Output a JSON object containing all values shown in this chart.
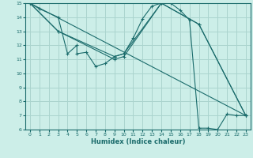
{
  "xlabel": "Humidex (Indice chaleur)",
  "background_color": "#cceee8",
  "grid_color": "#aad4ce",
  "line_color": "#1a6b6b",
  "xlim": [
    -0.5,
    23.5
  ],
  "ylim": [
    6,
    15
  ],
  "xticks": [
    0,
    1,
    2,
    3,
    4,
    5,
    6,
    7,
    8,
    9,
    10,
    11,
    12,
    13,
    14,
    15,
    16,
    17,
    18,
    19,
    20,
    21,
    22,
    23
  ],
  "yticks": [
    6,
    7,
    8,
    9,
    10,
    11,
    12,
    13,
    14,
    15
  ],
  "lines": [
    {
      "x": [
        0,
        1,
        3,
        4,
        5,
        5,
        6,
        7,
        8,
        9,
        10,
        11,
        12,
        13,
        14,
        15,
        16,
        17,
        18,
        19,
        20,
        21,
        22,
        23
      ],
      "y": [
        15,
        14.6,
        14.0,
        11.4,
        12.0,
        11.4,
        11.5,
        10.5,
        10.7,
        11.2,
        11.4,
        12.5,
        13.9,
        14.8,
        15.0,
        15.0,
        14.5,
        13.8,
        6.1,
        6.1,
        6.0,
        7.1,
        7.0,
        7.0
      ]
    },
    {
      "x": [
        0,
        3,
        9,
        10,
        14,
        18,
        23
      ],
      "y": [
        15,
        13.0,
        11.2,
        11.4,
        15.0,
        13.5,
        7.0
      ]
    },
    {
      "x": [
        0,
        3,
        9,
        10,
        14,
        18,
        23
      ],
      "y": [
        15,
        13.0,
        11.0,
        11.2,
        15.0,
        13.5,
        7.0
      ]
    },
    {
      "x": [
        0,
        23
      ],
      "y": [
        15,
        7.0
      ]
    }
  ]
}
